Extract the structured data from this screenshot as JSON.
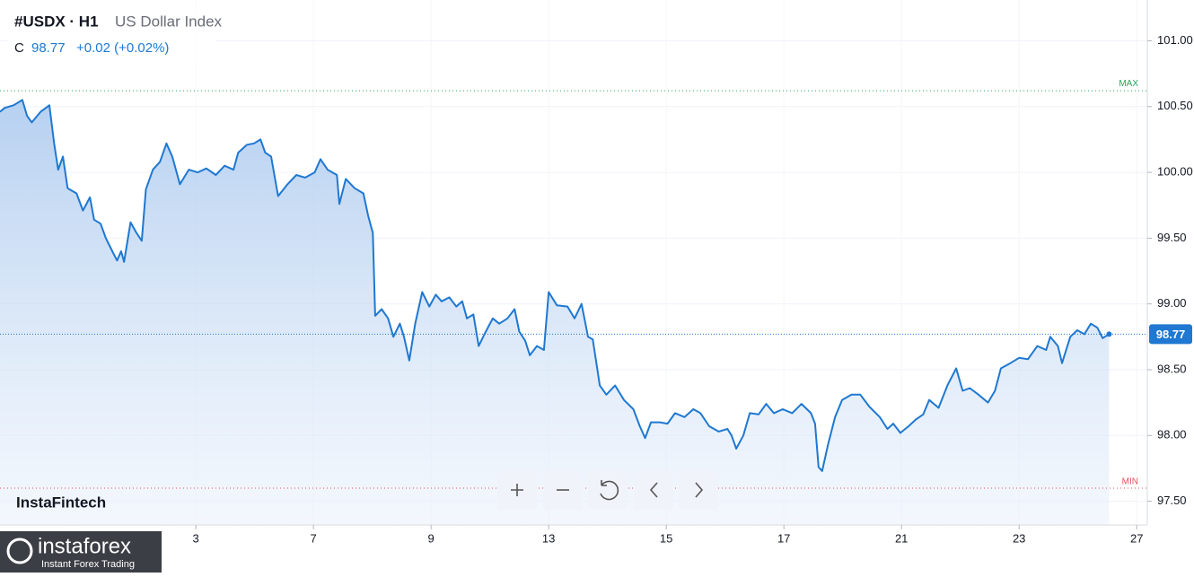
{
  "chart_data": {
    "type": "area",
    "title": "#USDX · H1",
    "subtitle": "US Dollar Index",
    "close_label": "C",
    "close": 98.77,
    "change": "+0.02 (+0.02%)",
    "brand": "InstaFintech",
    "logo_name": "instaforex",
    "logo_tagline": "Instant Forex Trading",
    "max_line": {
      "value": 100.62,
      "label": "MAX",
      "color": "#26a65b"
    },
    "min_line": {
      "value": 97.6,
      "label": "MIN",
      "color": "#e0525a"
    },
    "grid": true,
    "xlim": [
      -1.33,
      18.18
    ],
    "ylim": [
      97.32,
      101.31
    ],
    "xticks": [
      {
        "value": 2,
        "label": "3"
      },
      {
        "value": 4,
        "label": "7"
      },
      {
        "value": 6,
        "label": "9"
      },
      {
        "value": 8,
        "label": "13"
      },
      {
        "value": 10,
        "label": "15"
      },
      {
        "value": 12,
        "label": "17"
      },
      {
        "value": 14,
        "label": "21"
      },
      {
        "value": 16,
        "label": "23"
      },
      {
        "value": 18,
        "label": "27"
      }
    ],
    "yticks": [
      {
        "value": 97.5,
        "label": "97.50"
      },
      {
        "value": 98,
        "label": "98.00"
      },
      {
        "value": 98.5,
        "label": "98.50"
      },
      {
        "value": 99,
        "label": "99.00"
      },
      {
        "value": 99.5,
        "label": "99.50"
      },
      {
        "value": 100,
        "label": "100.00"
      },
      {
        "value": 100.5,
        "label": "100.50"
      },
      {
        "value": 101,
        "label": "101.00"
      }
    ],
    "x": [
      -1.33,
      -1.25,
      -1.1,
      -0.95,
      -0.87,
      -0.79,
      -0.64,
      -0.49,
      -0.41,
      -0.34,
      -0.26,
      -0.18,
      -0.03,
      0.08,
      0.2,
      0.27,
      0.38,
      0.47,
      0.58,
      0.66,
      0.73,
      0.78,
      0.89,
      0.99,
      1.08,
      1.15,
      1.27,
      1.39,
      1.5,
      1.6,
      1.73,
      1.88,
      2.03,
      2.18,
      2.34,
      2.49,
      2.64,
      2.72,
      2.87,
      2.99,
      3.1,
      3.18,
      3.28,
      3.4,
      3.56,
      3.71,
      3.86,
      4.02,
      4.12,
      4.24,
      4.4,
      4.44,
      4.55,
      4.7,
      4.85,
      4.93,
      5.01,
      5.05,
      5.16,
      5.27,
      5.36,
      5.47,
      5.54,
      5.63,
      5.73,
      5.85,
      5.97,
      6.08,
      6.18,
      6.31,
      6.43,
      6.53,
      6.61,
      6.72,
      6.81,
      6.92,
      7.05,
      7.16,
      7.3,
      7.42,
      7.5,
      7.6,
      7.68,
      7.8,
      7.92,
      8,
      8.14,
      8.32,
      8.44,
      8.56,
      8.67,
      8.75,
      8.87,
      8.98,
      9.13,
      9.28,
      9.44,
      9.55,
      9.64,
      9.74,
      9.89,
      10.02,
      10.15,
      10.31,
      10.46,
      10.58,
      10.73,
      10.89,
      11.04,
      11.11,
      11.19,
      11.31,
      11.42,
      11.57,
      11.7,
      11.83,
      11.98,
      12.14,
      12.3,
      12.46,
      12.53,
      12.59,
      12.65,
      12.75,
      12.87,
      12.99,
      13.15,
      13.3,
      13.45,
      13.63,
      13.76,
      13.86,
      13.98,
      14.12,
      14.24,
      14.37,
      14.47,
      14.63,
      14.78,
      14.93,
      15.04,
      15.16,
      15.31,
      15.47,
      15.59,
      15.69,
      15.85,
      16,
      16.15,
      16.31,
      16.46,
      16.53,
      16.66,
      16.73,
      16.87,
      16.99,
      17.11,
      17.22,
      17.33,
      17.42,
      17.53
    ],
    "series": [
      {
        "name": "USDX",
        "color": "#1f78d1",
        "values": [
          100.46,
          100.49,
          100.51,
          100.55,
          100.43,
          100.38,
          100.46,
          100.51,
          100.22,
          100.02,
          100.12,
          99.88,
          99.84,
          99.71,
          99.81,
          99.64,
          99.61,
          99.5,
          99.4,
          99.33,
          99.4,
          99.32,
          99.62,
          99.54,
          99.48,
          99.87,
          100.02,
          100.08,
          100.22,
          100.12,
          99.91,
          100.02,
          100,
          100.03,
          99.98,
          100.05,
          100.02,
          100.15,
          100.21,
          100.22,
          100.25,
          100.15,
          100.12,
          99.82,
          99.91,
          99.98,
          99.96,
          100,
          100.1,
          100.02,
          99.98,
          99.76,
          99.95,
          99.88,
          99.84,
          99.67,
          99.54,
          98.91,
          98.96,
          98.89,
          98.75,
          98.85,
          98.75,
          98.57,
          98.85,
          99.09,
          98.98,
          99.07,
          99.02,
          99.05,
          98.98,
          99.02,
          98.89,
          98.92,
          98.68,
          98.78,
          98.89,
          98.85,
          98.89,
          98.96,
          98.79,
          98.72,
          98.61,
          98.68,
          98.65,
          99.09,
          98.99,
          98.98,
          98.89,
          99,
          98.75,
          98.73,
          98.38,
          98.31,
          98.38,
          98.27,
          98.2,
          98.07,
          97.98,
          98.1,
          98.1,
          98.09,
          98.17,
          98.14,
          98.2,
          98.17,
          98.07,
          98.03,
          98.05,
          98,
          97.9,
          98,
          98.17,
          98.16,
          98.24,
          98.17,
          98.2,
          98.17,
          98.24,
          98.17,
          98.09,
          97.76,
          97.73,
          97.93,
          98.14,
          98.27,
          98.31,
          98.31,
          98.22,
          98.14,
          98.05,
          98.09,
          98.02,
          98.07,
          98.12,
          98.16,
          98.27,
          98.21,
          98.38,
          98.51,
          98.34,
          98.36,
          98.31,
          98.25,
          98.34,
          98.51,
          98.55,
          98.59,
          98.58,
          98.68,
          98.65,
          98.75,
          98.68,
          98.55,
          98.75,
          98.8,
          98.77,
          98.85,
          98.82,
          98.74,
          98.77
        ]
      }
    ]
  }
}
